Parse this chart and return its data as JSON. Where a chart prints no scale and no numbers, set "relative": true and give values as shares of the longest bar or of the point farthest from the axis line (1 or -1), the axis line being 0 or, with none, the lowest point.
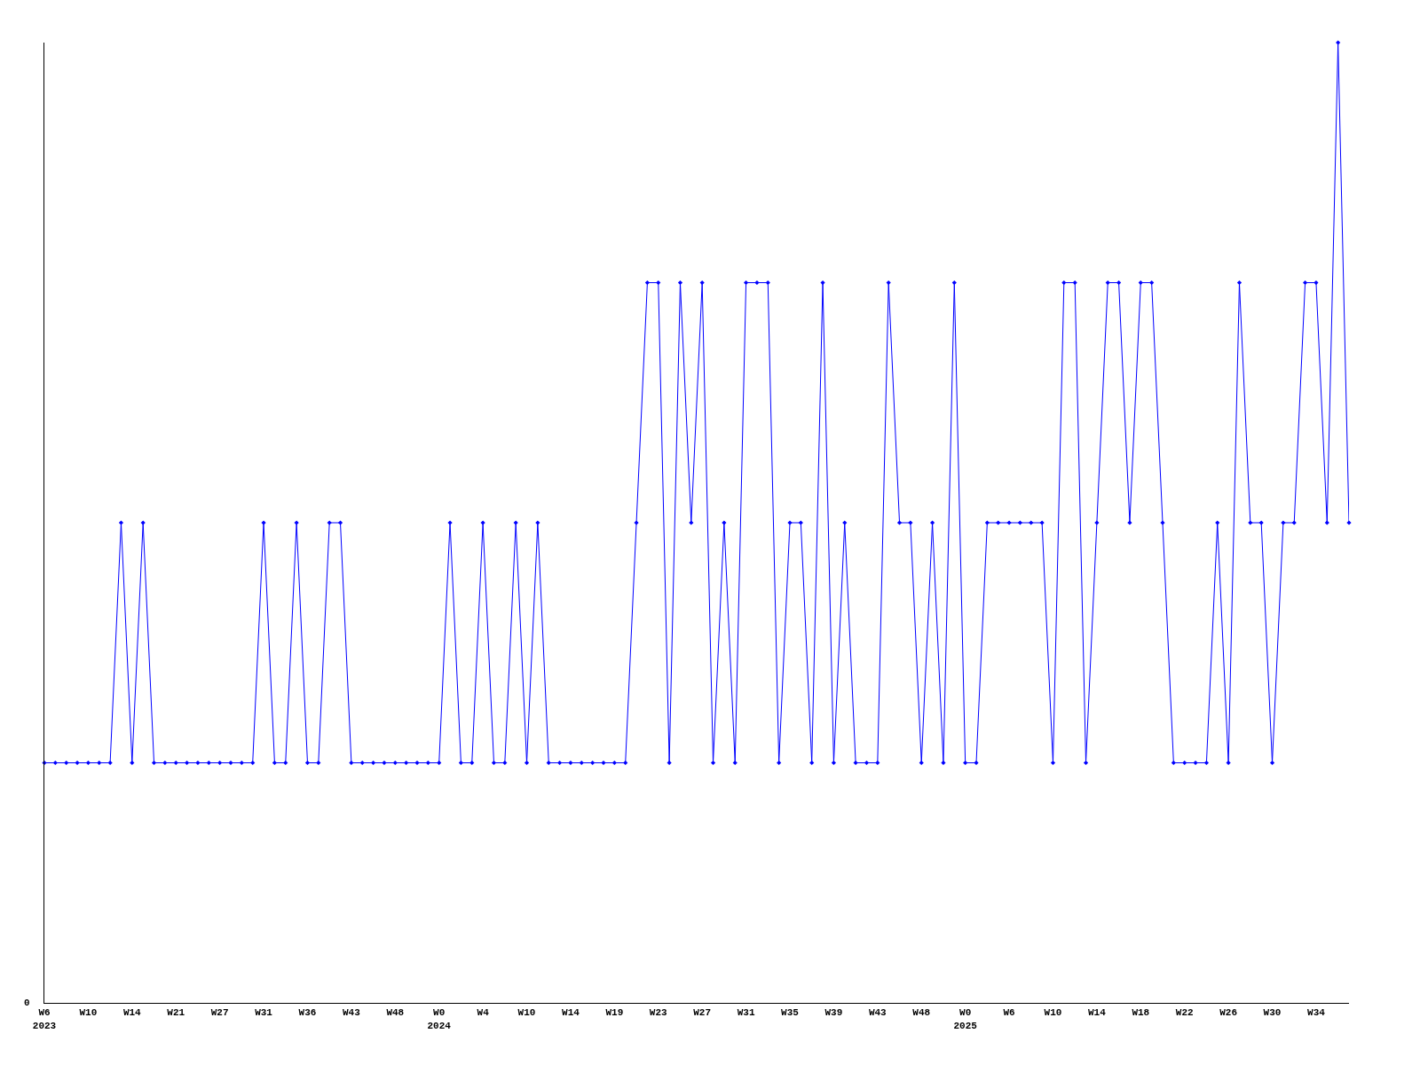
{
  "chart_data": {
    "type": "line",
    "relative": true,
    "marker": "diamond",
    "categories": [
      "W6\n2023",
      null,
      null,
      null,
      "W10",
      null,
      null,
      null,
      "W14",
      null,
      null,
      null,
      "W21",
      null,
      null,
      null,
      "W27",
      null,
      null,
      null,
      "W31",
      null,
      null,
      null,
      "W36",
      null,
      null,
      null,
      "W43",
      null,
      null,
      null,
      "W48",
      null,
      null,
      null,
      "W0\n2024",
      null,
      null,
      null,
      "W4",
      null,
      null,
      null,
      "W10",
      null,
      null,
      null,
      "W14",
      null,
      null,
      null,
      "W19",
      null,
      null,
      null,
      "W23",
      null,
      null,
      null,
      "W27",
      null,
      null,
      null,
      "W31",
      null,
      null,
      null,
      "W35",
      null,
      null,
      null,
      "W39",
      null,
      null,
      null,
      "W43",
      null,
      null,
      null,
      "W48",
      null,
      null,
      null,
      "W0\n2025",
      null,
      null,
      null,
      "W6",
      null,
      null,
      null,
      "W10",
      null,
      null,
      null,
      "W14",
      null,
      null,
      null,
      "W18",
      null,
      null,
      null,
      "W22",
      null,
      null,
      null,
      "W26",
      null,
      null,
      null,
      "W30",
      null,
      null,
      null,
      "W34",
      null,
      null,
      null
    ],
    "series": [
      {
        "color": "#0000ff",
        "values": [
          0.25,
          0.25,
          0.25,
          0.25,
          0.25,
          0.25,
          0.25,
          0.5,
          0.25,
          0.5,
          0.25,
          0.25,
          0.25,
          0.25,
          0.25,
          0.25,
          0.25,
          0.25,
          0.25,
          0.25,
          0.5,
          0.25,
          0.25,
          0.5,
          0.25,
          0.25,
          0.5,
          0.5,
          0.25,
          0.25,
          0.25,
          0.25,
          0.25,
          0.25,
          0.25,
          0.25,
          0.25,
          0.5,
          0.25,
          0.25,
          0.5,
          0.25,
          0.25,
          0.5,
          0.25,
          0.5,
          0.25,
          0.25,
          0.25,
          0.25,
          0.25,
          0.25,
          0.25,
          0.25,
          0.5,
          0.75,
          0.75,
          0.25,
          0.75,
          0.5,
          0.75,
          0.25,
          0.5,
          0.25,
          0.75,
          0.75,
          0.75,
          0.25,
          0.5,
          0.5,
          0.25,
          0.75,
          0.25,
          0.5,
          0.25,
          0.25,
          0.25,
          0.75,
          0.5,
          0.5,
          0.25,
          0.5,
          0.25,
          0.75,
          0.25,
          0.25,
          0.5,
          0.5,
          0.5,
          0.5,
          0.5,
          0.5,
          0.25,
          0.75,
          0.75,
          0.25,
          0.5,
          0.75,
          0.75,
          0.5,
          0.75,
          0.75,
          0.5,
          0.25,
          0.25,
          0.25,
          0.25,
          0.5,
          0.25,
          0.75,
          0.5,
          0.5,
          0.25,
          0.5,
          0.5,
          0.75,
          0.75,
          0.5,
          1,
          0.5
        ]
      }
    ],
    "annotations": [
      "0"
    ]
  }
}
